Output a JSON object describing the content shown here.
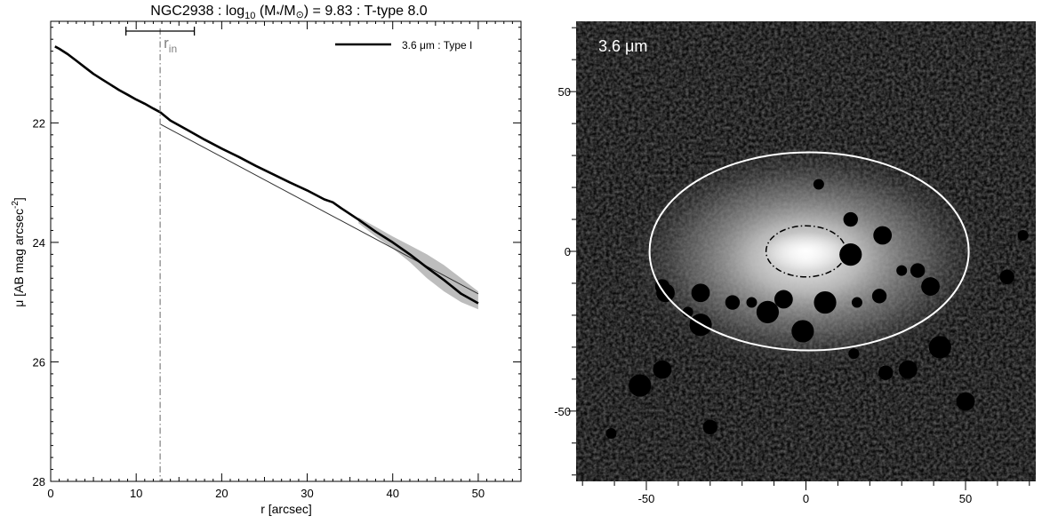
{
  "left_plot": {
    "title_parts": {
      "galaxy": "NGC2938",
      "mass_prefix": " : log",
      "mass_sub": "10",
      "mass_ratio_open": " (M",
      "star": "*",
      "mass_ratio_mid": "/M",
      "sun": "⊙",
      "mass_value": ") = 9.83",
      "ttype": " : T-type 8.0"
    },
    "xlabel": "r [arcsec]",
    "ylabel_main": "μ [AB mag arcsec",
    "ylabel_sup": "-2",
    "ylabel_close": "]",
    "rin_label": "r",
    "rin_sub": "in",
    "legend_label": "3.6 μm : Type I",
    "line_color": "#000000",
    "band_color": "#bdbdbd",
    "rin_color": "#808080"
  },
  "right_panel": {
    "band_label": "3.6 μm",
    "ellipse_color": "#ffffff"
  },
  "chart_data": [
    {
      "type": "line",
      "title": "NGC2938 : log10 (M*/M⊙) = 9.83 : T-type 8.0",
      "xlabel": "r [arcsec]",
      "ylabel": "μ [AB mag arcsec-2]",
      "xlim": [
        0,
        55
      ],
      "ylim": [
        28,
        20.3
      ],
      "y_inverted": true,
      "xticks": [
        0,
        10,
        20,
        30,
        40,
        50
      ],
      "yticks": [
        22,
        24,
        26,
        28
      ],
      "legend_position": "top-right",
      "series": [
        {
          "name": "3.6 μm : Type I",
          "x": [
            0.5,
            1,
            2,
            3,
            4,
            5,
            6,
            7,
            8,
            9,
            10,
            11,
            12,
            12.8,
            14,
            16,
            18,
            20,
            22,
            24,
            26,
            28,
            30,
            32,
            33,
            34,
            36,
            38,
            40,
            42,
            44,
            46,
            48,
            50
          ],
          "y": [
            20.72,
            20.76,
            20.85,
            20.96,
            21.07,
            21.18,
            21.27,
            21.36,
            21.45,
            21.53,
            21.61,
            21.68,
            21.76,
            21.82,
            21.96,
            22.12,
            22.28,
            22.43,
            22.57,
            22.72,
            22.86,
            23.0,
            23.13,
            23.28,
            23.33,
            23.43,
            23.62,
            23.82,
            24.0,
            24.2,
            24.42,
            24.63,
            24.86,
            25.02
          ]
        }
      ],
      "uncertainty_band": {
        "x": [
          36,
          38,
          40,
          42,
          44,
          46,
          48,
          50
        ],
        "y_low": [
          23.58,
          23.74,
          23.9,
          24.05,
          24.2,
          24.38,
          24.6,
          24.82
        ],
        "y_high": [
          23.68,
          23.9,
          24.1,
          24.33,
          24.6,
          24.82,
          25.0,
          25.12
        ]
      },
      "disk_fit": {
        "x": [
          12.8,
          50
        ],
        "y": [
          22.02,
          24.86
        ]
      },
      "r_in": {
        "value": 12.8,
        "range": [
          8.8,
          16.8
        ]
      }
    },
    {
      "type": "heatmap",
      "title": "3.6 μm",
      "xlim": [
        -72,
        72
      ],
      "ylim": [
        -72,
        72
      ],
      "xticks": [
        -50,
        0,
        50
      ],
      "yticks": [
        -50,
        0,
        50
      ],
      "outer_ellipse": {
        "cx": 1,
        "cy": 0,
        "a": 50,
        "b": 31
      },
      "inner_ellipse": {
        "cx": 0,
        "cy": 0,
        "a": 12.5,
        "b": 8
      },
      "masked_sources": [
        [
          4,
          21
        ],
        [
          14,
          10
        ],
        [
          24,
          5
        ],
        [
          14,
          -1
        ],
        [
          30,
          -6
        ],
        [
          35,
          -6
        ],
        [
          39,
          -11
        ],
        [
          6,
          -16
        ],
        [
          16,
          -16
        ],
        [
          23,
          -14
        ],
        [
          -7,
          -15
        ],
        [
          -12,
          -19
        ],
        [
          -17,
          -16
        ],
        [
          -23,
          -16
        ],
        [
          -33,
          -13
        ],
        [
          -33,
          -23
        ],
        [
          -37,
          -19
        ],
        [
          -45,
          -11
        ],
        [
          -44,
          -13
        ],
        [
          -1,
          -25
        ],
        [
          15,
          -32
        ],
        [
          25,
          -38
        ],
        [
          32,
          -37
        ],
        [
          42,
          -30
        ],
        [
          68,
          5
        ],
        [
          63,
          -8
        ],
        [
          -45,
          -37
        ],
        [
          -52,
          -42
        ],
        [
          -61,
          -57
        ],
        [
          -30,
          -55
        ],
        [
          50,
          -47
        ]
      ]
    }
  ]
}
